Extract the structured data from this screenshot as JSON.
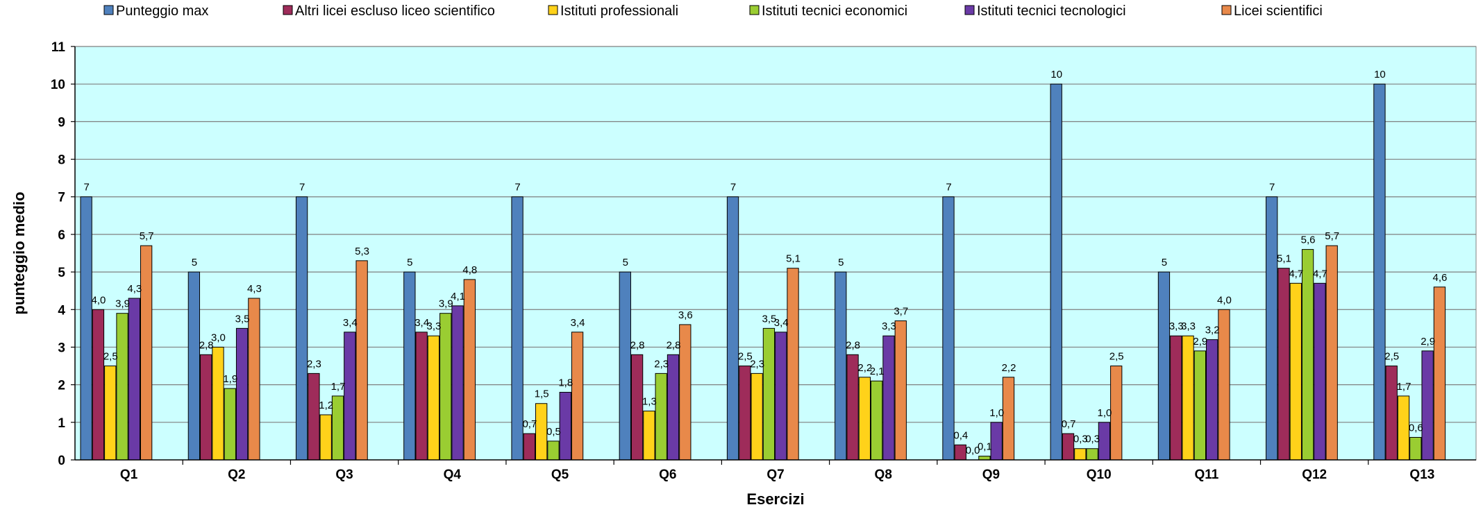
{
  "chart_data": {
    "type": "bar",
    "xlabel": "Esercizi",
    "ylabel": "punteggio medio",
    "ylim": [
      0,
      11
    ],
    "yticks": [
      "0",
      "1",
      "2",
      "3",
      "4",
      "5",
      "6",
      "7",
      "8",
      "9",
      "10",
      "11"
    ],
    "grid": true,
    "legend_position": "top",
    "plot_background": "#ccffff",
    "categories": [
      "Q1",
      "Q2",
      "Q3",
      "Q4",
      "Q5",
      "Q6",
      "Q7",
      "Q8",
      "Q9",
      "Q10",
      "Q11",
      "Q12",
      "Q13"
    ],
    "series": [
      {
        "name": "Punteggio max",
        "color": "#4f81bd",
        "values": [
          7,
          5,
          7,
          5,
          7,
          5,
          7,
          5,
          7,
          10,
          5,
          7,
          10
        ],
        "labels": [
          "7",
          "5",
          "7",
          "5",
          "7",
          "5",
          "7",
          "5",
          "7",
          "10",
          "5",
          "7",
          "10"
        ]
      },
      {
        "name": "Altri licei escluso liceo scientifico",
        "color": "#9e2c5a",
        "values": [
          4.0,
          2.8,
          2.3,
          3.4,
          0.7,
          2.8,
          2.5,
          2.8,
          0.4,
          0.7,
          3.3,
          5.1,
          2.5
        ],
        "labels": [
          "4,0",
          "2,8",
          "2,3",
          "3,4",
          "0,7",
          "2,8",
          "2,5",
          "2,8",
          "0,4",
          "0,7",
          "3,3",
          "5,1",
          "2,5"
        ]
      },
      {
        "name": "Istituti professionali",
        "color": "#ffd21a",
        "values": [
          2.5,
          3.0,
          1.2,
          3.3,
          1.5,
          1.3,
          2.3,
          2.2,
          0.0,
          0.3,
          3.3,
          4.7,
          1.7
        ],
        "labels": [
          "2,5",
          "3,0",
          "1,2",
          "3,3",
          "1,5",
          "1,3",
          "2,3",
          "2,2",
          "0,0",
          "0,3",
          "3,3",
          "4,7",
          "1,7"
        ]
      },
      {
        "name": "Istituti tecnici economici",
        "color": "#9acd32",
        "values": [
          3.9,
          1.9,
          1.7,
          3.9,
          0.5,
          2.3,
          3.5,
          2.1,
          0.1,
          0.3,
          2.9,
          5.6,
          0.6
        ],
        "labels": [
          "3,9",
          "1,9",
          "1,7",
          "3,9",
          "0,5",
          "2,3",
          "3,5",
          "2,1",
          "0,1",
          "0,3",
          "2,9",
          "5,6",
          "0,6"
        ]
      },
      {
        "name": "Istituti tecnici tecnologici",
        "color": "#6a3aa6",
        "values": [
          4.3,
          3.5,
          3.4,
          4.1,
          1.8,
          2.8,
          3.4,
          3.3,
          1.0,
          1.0,
          3.2,
          4.7,
          2.9
        ],
        "labels": [
          "4,3",
          "3,5",
          "3,4",
          "4,1",
          "1,8",
          "2,8",
          "3,4",
          "3,3",
          "1,0",
          "1,0",
          "3,2",
          "4,7",
          "2,9"
        ]
      },
      {
        "name": "Licei scientifici",
        "color": "#e8894a",
        "values": [
          5.7,
          4.3,
          5.3,
          4.8,
          3.4,
          3.6,
          5.1,
          3.7,
          2.2,
          2.5,
          4.0,
          5.7,
          4.6
        ],
        "labels": [
          "5,7",
          "4,3",
          "5,3",
          "4,8",
          "3,4",
          "3,6",
          "5,1",
          "3,7",
          "2,2",
          "2,5",
          "4,0",
          "5,7",
          "4,6"
        ]
      }
    ]
  }
}
